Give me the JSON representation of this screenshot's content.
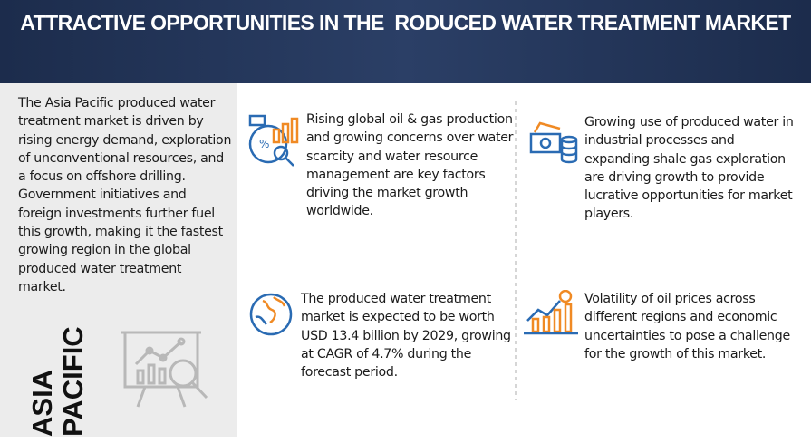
{
  "header": {
    "title": "ATTRACTIVE OPPORTUNITIES IN THE  RODUCED WATER TREATMENT MARKET"
  },
  "left_panel": {
    "description": "The Asia Pacific produced water treatment market is driven by rising energy demand, exploration of unconventional resources, and a focus on offshore drilling. Government initiatives and foreign investments further fuel this growth, making it the fastest growing region in the global produced water treatment market.",
    "region": "ASIA PACIFIC"
  },
  "items": [
    {
      "text": "Rising global oil & gas production and growing concerns over water scarcity and water resource management are key factors driving the market growth worldwide."
    },
    {
      "text": "Growing use of produced water in industrial processes and expanding shale gas exploration are driving growth to provide lucrative opportunities for market players."
    },
    {
      "text": "The produced water treatment market is expected to be worth USD 13.4 billion by 2029, growing at CAGR of 4.7% during the forecast period."
    },
    {
      "text": "Volatility of oil prices across different regions and economic uncertainties to pose a challenge for the growth of this market."
    }
  ]
}
